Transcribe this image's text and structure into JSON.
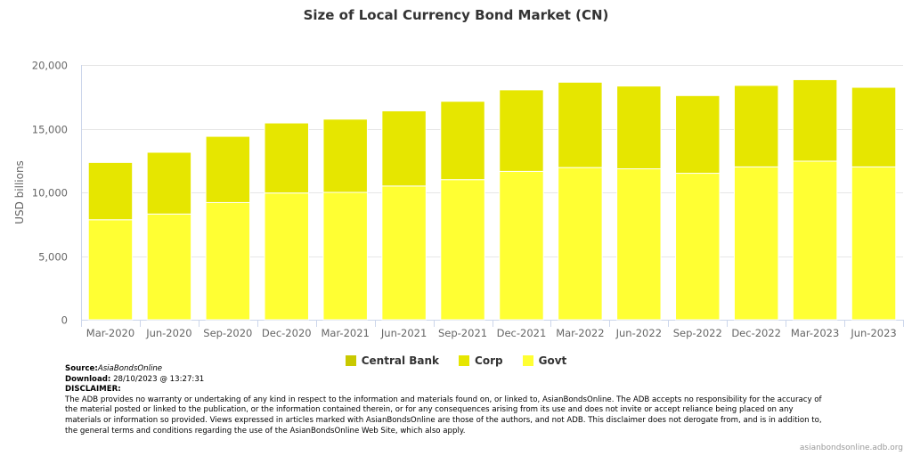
{
  "chart_data": {
    "type": "bar",
    "stacked": true,
    "title": "Size of Local Currency Bond Market (CN)",
    "xlabel": "",
    "ylabel": "USD billions",
    "ylim": [
      0,
      20000
    ],
    "yticks": [
      0,
      5000,
      10000,
      15000,
      20000
    ],
    "ytick_labels": [
      "0",
      "5,000",
      "10,000",
      "15,000",
      "20,000"
    ],
    "grid": true,
    "legend_position": "bottom-center",
    "categories": [
      "Mar-2020",
      "Jun-2020",
      "Sep-2020",
      "Dec-2020",
      "Mar-2021",
      "Jun-2021",
      "Sep-2021",
      "Dec-2021",
      "Mar-2022",
      "Jun-2022",
      "Sep-2022",
      "Dec-2022",
      "Mar-2023",
      "Jun-2023"
    ],
    "series": [
      {
        "name": "Central Bank",
        "color": "#c9c900",
        "values": [
          0,
          0,
          0,
          0,
          0,
          0,
          0,
          0,
          0,
          0,
          0,
          0,
          0,
          0
        ]
      },
      {
        "name": "Corp",
        "color": "#e6e600",
        "values": [
          4500,
          4850,
          5200,
          5500,
          5750,
          5900,
          6150,
          6400,
          6700,
          6500,
          6100,
          6400,
          6400,
          6250
        ]
      },
      {
        "name": "Govt",
        "color": "#ffff33",
        "values": [
          7850,
          8300,
          9200,
          9950,
          10000,
          10500,
          11000,
          11650,
          11950,
          11850,
          11500,
          12000,
          12450,
          12000
        ]
      }
    ]
  },
  "footer": {
    "source_label": "Source:",
    "source_value": "AsiaBondsOnline",
    "download_label": "Download:",
    "download_value": "28/10/2023 @ 13:27:31",
    "disclaimer_label": "DISCLAIMER:",
    "disclaimer_text": "The ADB provides no warranty or undertaking of any kind in respect to the information and materials found on, or linked to, AsianBondsOnline. The ADB accepts no responsibility for the accuracy of the material posted or linked to the publication, or the information contained therein, or for any consequences arising from its use and does not invite or accept reliance being placed on any materials or information so provided. Views expressed in articles marked with AsianBondsOnline are those of the authors, and not ADB. This disclaimer does not derogate from, and is in addition to, the general terms and conditions regarding the use of the AsianBondsOnline Web Site, which also apply."
  },
  "credits": "asianbondsonline.adb.org"
}
